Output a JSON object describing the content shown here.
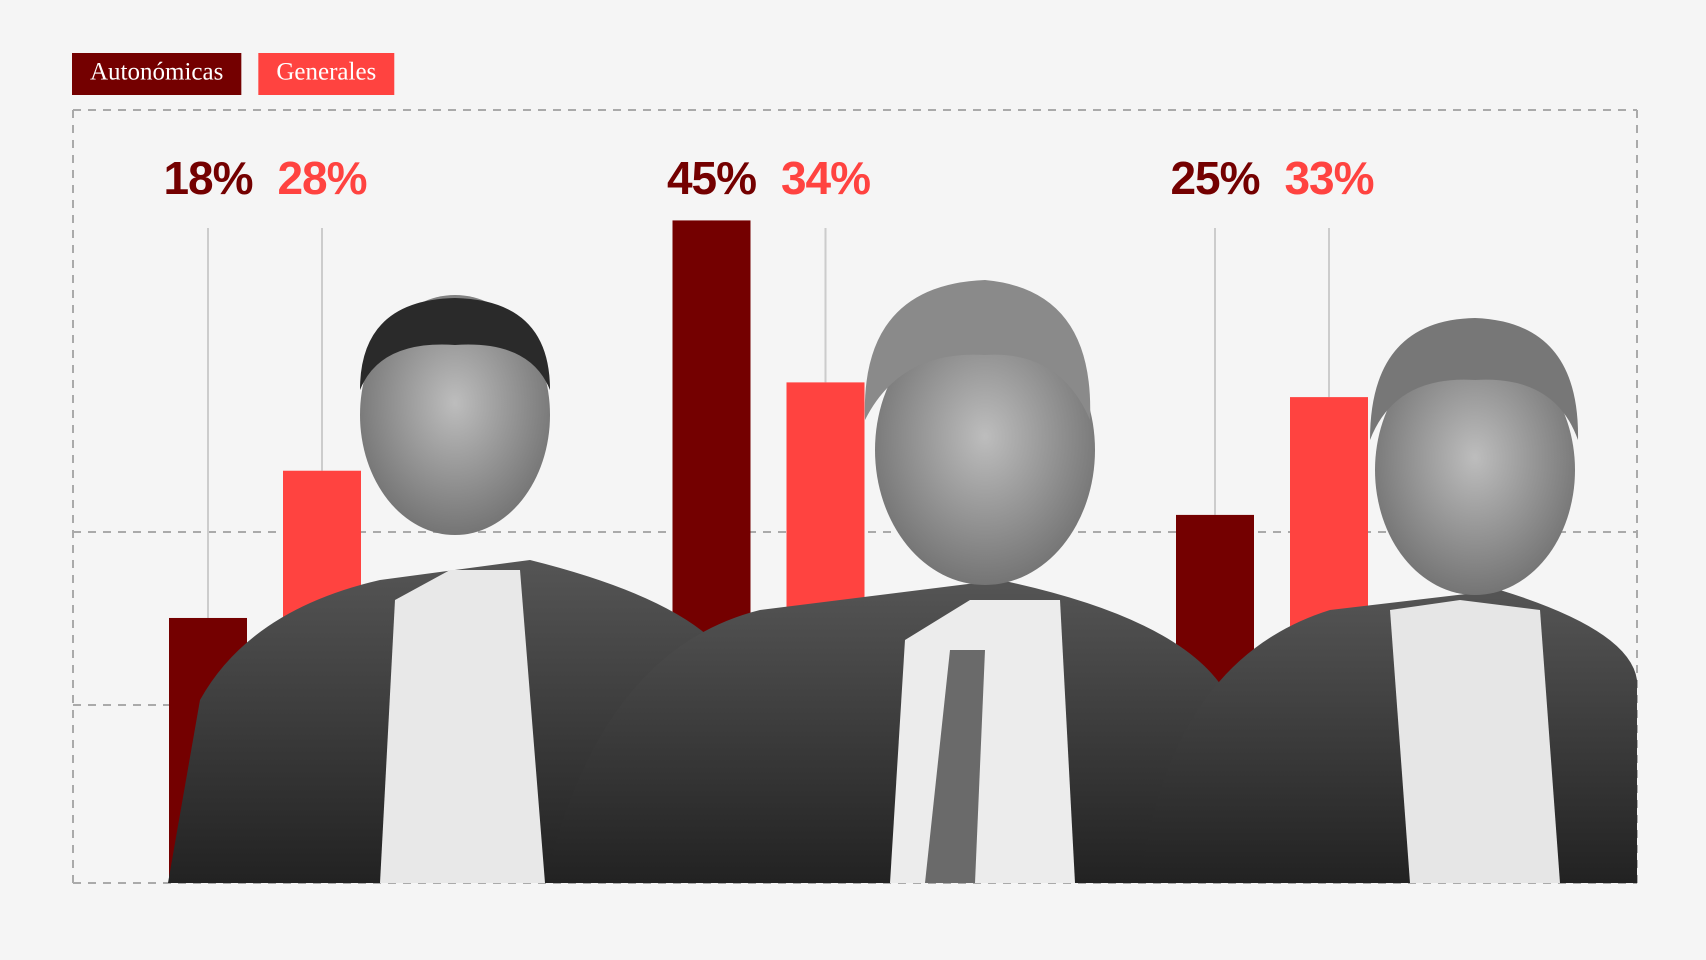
{
  "chart_data": {
    "type": "bar",
    "categories": [
      null,
      null,
      null
    ],
    "series": [
      {
        "name": "Autonómicas",
        "color": "#740000",
        "values": [
          18,
          45,
          25
        ],
        "value_labels": [
          "18%",
          "45%",
          "25%"
        ]
      },
      {
        "name": "Generales",
        "color": "#ff4340",
        "values": [
          28,
          34,
          33
        ],
        "value_labels": [
          "28%",
          "34%",
          "33%"
        ]
      }
    ],
    "ylim": [
      0,
      52.5
    ]
  }
}
